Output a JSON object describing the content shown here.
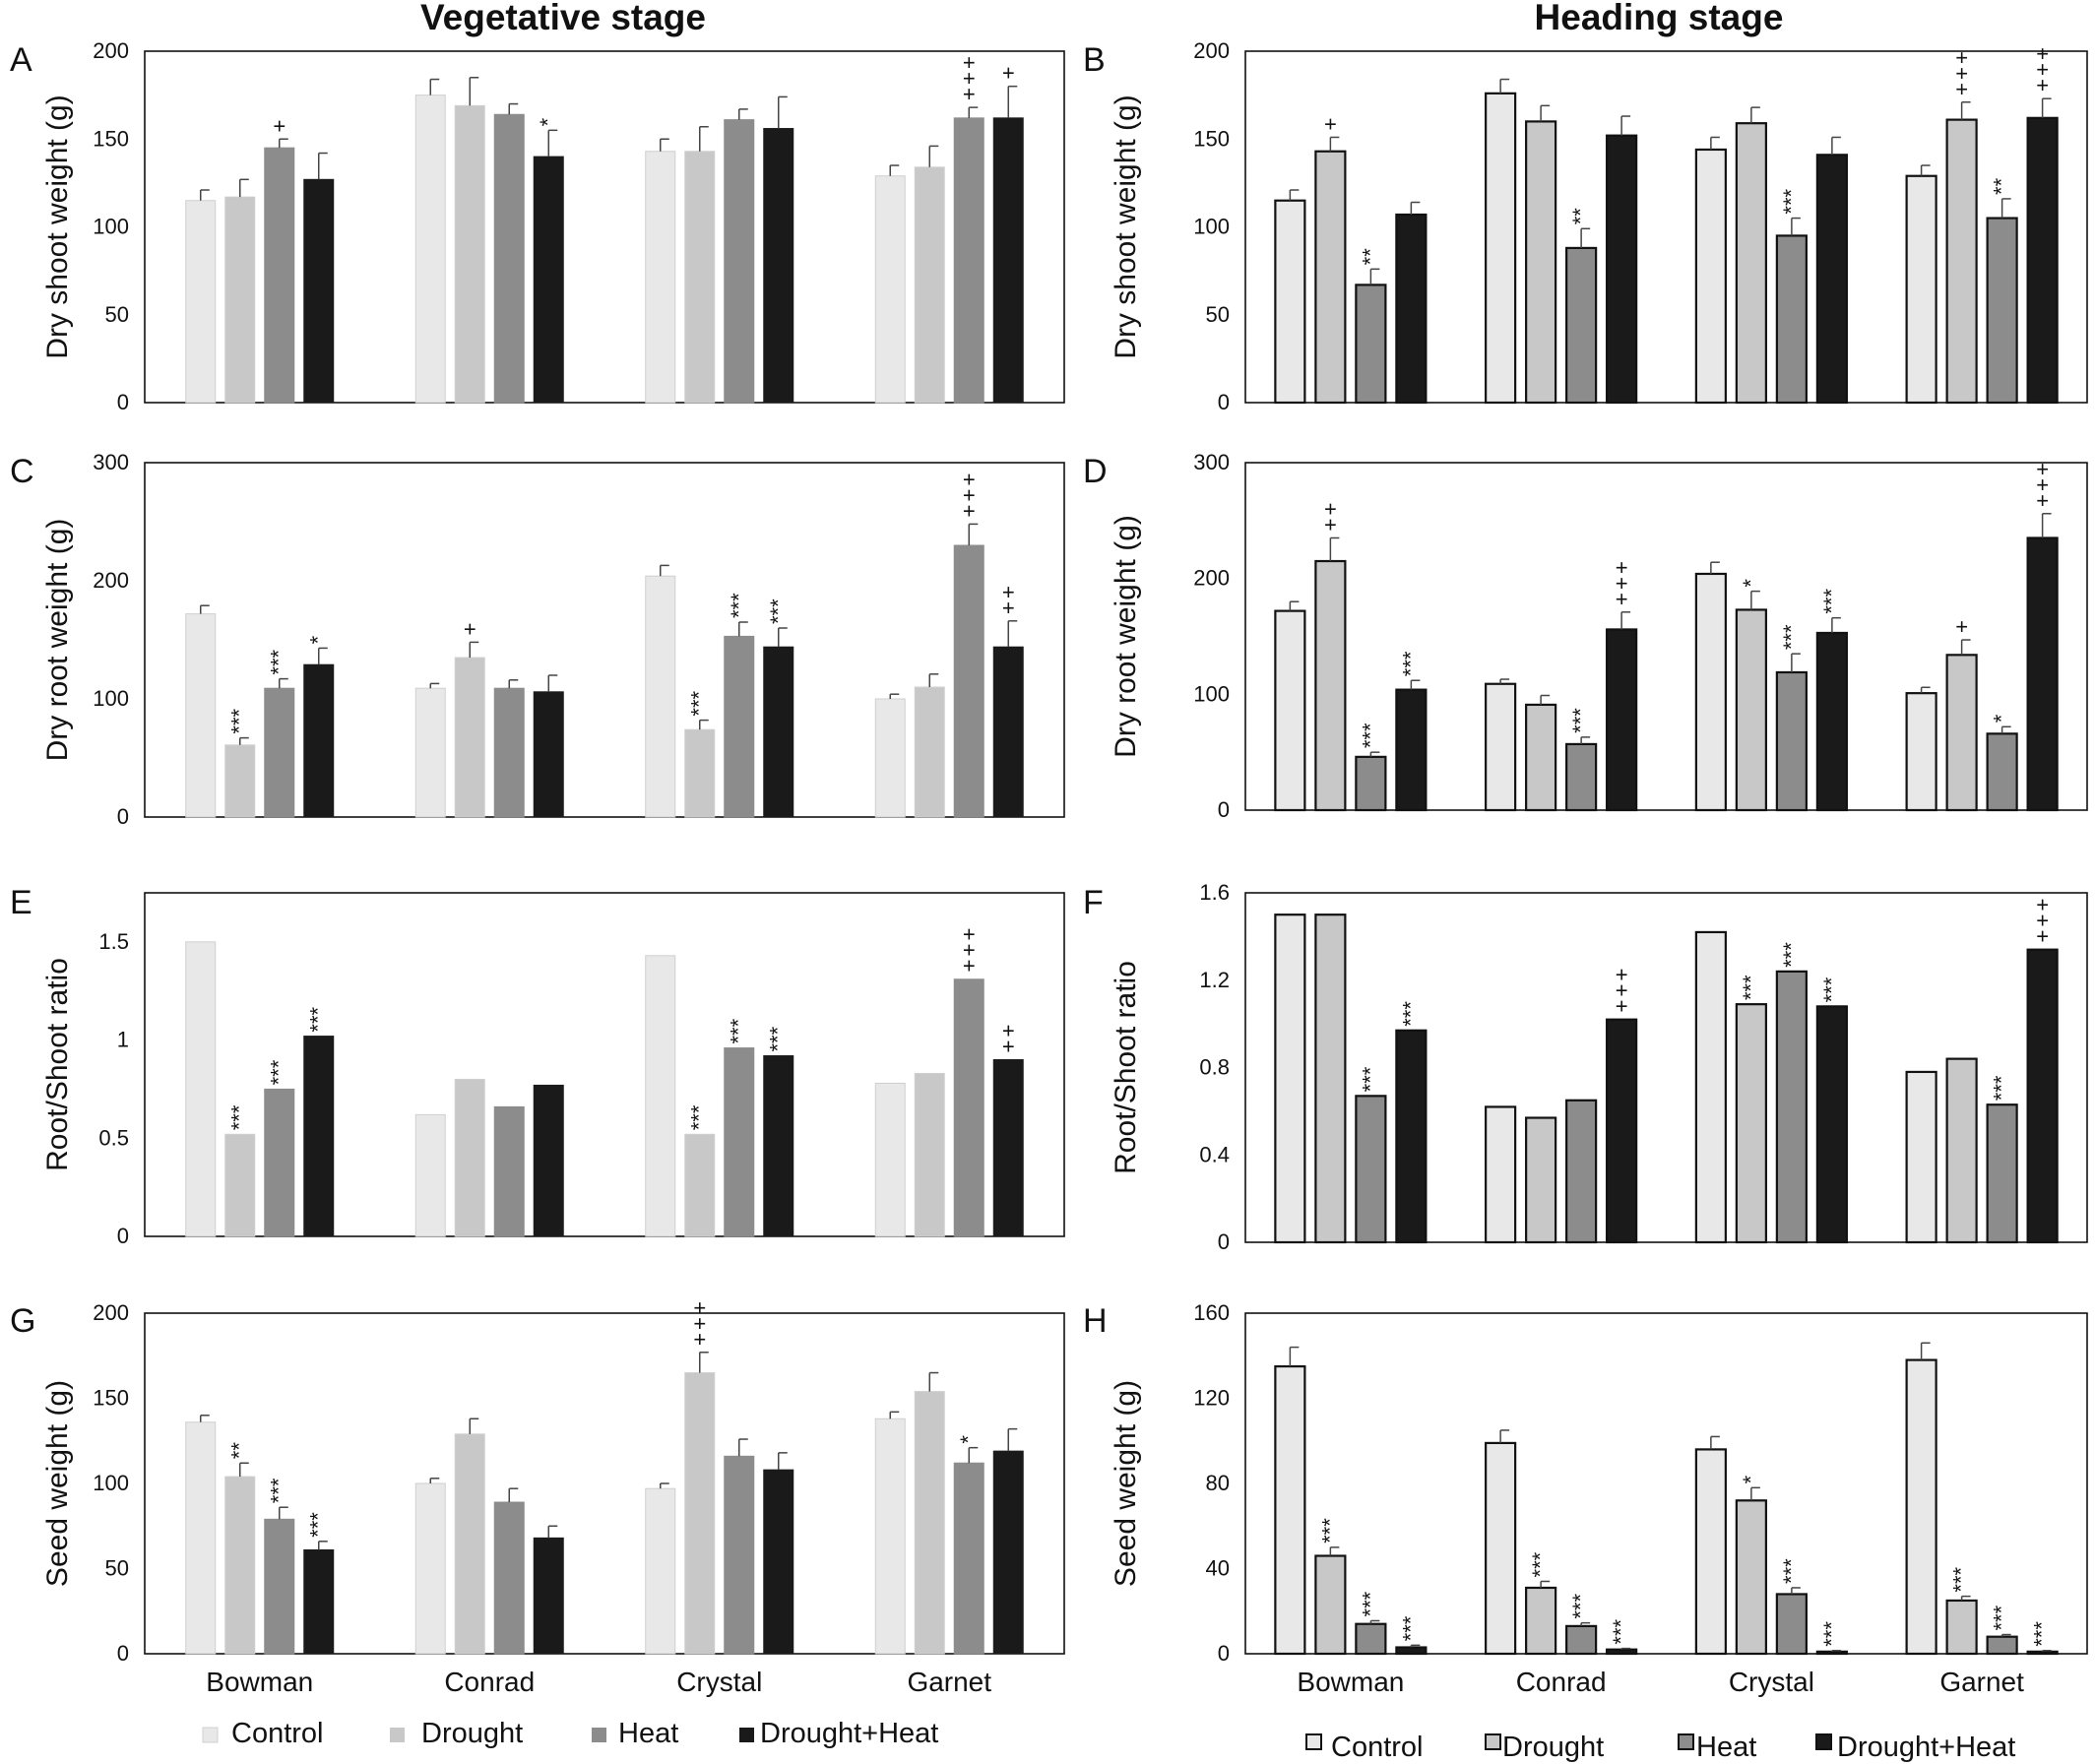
{
  "titles": {
    "left": "Vegetative stage",
    "right": "Heading stage"
  },
  "colors": {
    "Control": "#e8e8e8",
    "Drought": "#c8c8c8",
    "Heat": "#8c8c8c",
    "Drought+Heat": "#1a1a1a"
  },
  "legend": [
    "Control",
    "Drought",
    "Heat",
    "Drought+Heat"
  ],
  "chart_data": [
    {
      "id": "A",
      "type": "bar",
      "title": "",
      "ylabel": "Dry shoot weight (g)",
      "ylim": [
        0,
        200
      ],
      "yticks": [
        0,
        50,
        100,
        150,
        200
      ],
      "categories": [
        "Bowman",
        "Conrad",
        "Crystal",
        "Garnet"
      ],
      "series": [
        {
          "name": "Control",
          "values": [
            115,
            175,
            143,
            129
          ],
          "errors": [
            6,
            9,
            7,
            6
          ],
          "annotations": [
            "",
            "",
            "",
            ""
          ]
        },
        {
          "name": "Drought",
          "values": [
            117,
            169,
            143,
            134
          ],
          "errors": [
            10,
            16,
            14,
            12
          ],
          "annotations": [
            "",
            "",
            "",
            ""
          ]
        },
        {
          "name": "Heat",
          "values": [
            145,
            164,
            161,
            162
          ],
          "errors": [
            5,
            6,
            6,
            6
          ],
          "annotations": [
            "+",
            "",
            "",
            "+++"
          ]
        },
        {
          "name": "Drought+Heat",
          "values": [
            127,
            140,
            156,
            162
          ],
          "errors": [
            15,
            15,
            18,
            18
          ],
          "annotations": [
            "",
            "*",
            "",
            "+"
          ]
        }
      ]
    },
    {
      "id": "B",
      "type": "bar",
      "title": "",
      "ylabel": "Dry shoot weight (g)",
      "ylim": [
        0,
        200
      ],
      "yticks": [
        0,
        50,
        100,
        150,
        200
      ],
      "categories": [
        "Bowman",
        "Conrad",
        "Crystal",
        "Garnet"
      ],
      "series": [
        {
          "name": "Control",
          "values": [
            115,
            176,
            144,
            129
          ],
          "errors": [
            6,
            8,
            7,
            6
          ],
          "annotations": [
            "",
            "",
            "",
            ""
          ]
        },
        {
          "name": "Drought",
          "values": [
            143,
            160,
            159,
            161
          ],
          "errors": [
            8,
            9,
            9,
            10
          ],
          "annotations": [
            "+",
            "",
            "",
            "+++"
          ]
        },
        {
          "name": "Heat",
          "values": [
            67,
            88,
            95,
            105
          ],
          "errors": [
            9,
            11,
            10,
            11
          ],
          "annotations": [
            "**",
            "**",
            "***",
            "**"
          ]
        },
        {
          "name": "Drought+Heat",
          "values": [
            107,
            152,
            141,
            162
          ],
          "errors": [
            7,
            11,
            10,
            11
          ],
          "annotations": [
            "",
            "",
            "",
            "+++"
          ]
        }
      ]
    },
    {
      "id": "C",
      "type": "bar",
      "title": "",
      "ylabel": "Dry root weight (g)",
      "ylim": [
        0,
        300
      ],
      "yticks": [
        0,
        100,
        200,
        300
      ],
      "categories": [
        "Bowman",
        "Conrad",
        "Crystal",
        "Garnet"
      ],
      "series": [
        {
          "name": "Control",
          "values": [
            172,
            109,
            204,
            100
          ],
          "errors": [
            7,
            4,
            9,
            4
          ],
          "annotations": [
            "",
            "",
            "",
            ""
          ]
        },
        {
          "name": "Drought",
          "values": [
            61,
            135,
            74,
            110
          ],
          "errors": [
            6,
            13,
            8,
            11
          ],
          "annotations": [
            "***",
            "+",
            "***",
            ""
          ]
        },
        {
          "name": "Heat",
          "values": [
            109,
            109,
            153,
            230
          ],
          "errors": [
            8,
            7,
            12,
            18
          ],
          "annotations": [
            "***",
            "",
            "***",
            "+++"
          ]
        },
        {
          "name": "Drought+Heat",
          "values": [
            129,
            106,
            144,
            144
          ],
          "errors": [
            14,
            14,
            16,
            22
          ],
          "annotations": [
            "*",
            "",
            "***",
            "++"
          ]
        }
      ]
    },
    {
      "id": "D",
      "type": "bar",
      "title": "",
      "ylabel": "Dry root weight (g)",
      "ylim": [
        0,
        300
      ],
      "yticks": [
        0,
        100,
        200,
        300
      ],
      "categories": [
        "Bowman",
        "Conrad",
        "Crystal",
        "Garnet"
      ],
      "series": [
        {
          "name": "Control",
          "values": [
            172,
            109,
            204,
            101
          ],
          "errors": [
            8,
            4,
            10,
            5
          ],
          "annotations": [
            "",
            "",
            "",
            ""
          ]
        },
        {
          "name": "Drought",
          "values": [
            215,
            91,
            173,
            134
          ],
          "errors": [
            20,
            8,
            16,
            13
          ],
          "annotations": [
            "++",
            "",
            "*",
            "+"
          ]
        },
        {
          "name": "Heat",
          "values": [
            46,
            57,
            119,
            66
          ],
          "errors": [
            4,
            6,
            16,
            6
          ],
          "annotations": [
            "***",
            "***",
            "***",
            "*"
          ]
        },
        {
          "name": "Drought+Heat",
          "values": [
            104,
            156,
            153,
            235
          ],
          "errors": [
            8,
            15,
            13,
            21
          ],
          "annotations": [
            "***",
            "+++",
            "***",
            "+++"
          ]
        }
      ]
    },
    {
      "id": "E",
      "type": "bar",
      "title": "",
      "ylabel": "Root/Shoot ratio",
      "ylim": [
        0,
        1.75
      ],
      "yticks": [
        0,
        0.5,
        1,
        1.5
      ],
      "categories": [
        "Bowman",
        "Conrad",
        "Crystal",
        "Garnet"
      ],
      "series": [
        {
          "name": "Control",
          "values": [
            1.5,
            0.62,
            1.43,
            0.78
          ],
          "errors": [
            0,
            0,
            0,
            0
          ],
          "annotations": [
            "",
            "",
            "",
            ""
          ]
        },
        {
          "name": "Drought",
          "values": [
            0.52,
            0.8,
            0.52,
            0.83
          ],
          "errors": [
            0,
            0,
            0,
            0
          ],
          "annotations": [
            "***",
            "",
            "***",
            ""
          ]
        },
        {
          "name": "Heat",
          "values": [
            0.75,
            0.66,
            0.96,
            1.31
          ],
          "errors": [
            0,
            0,
            0,
            0
          ],
          "annotations": [
            "***",
            "",
            "***",
            "+++"
          ]
        },
        {
          "name": "Drought+Heat",
          "values": [
            1.02,
            0.77,
            0.92,
            0.9
          ],
          "errors": [
            0,
            0,
            0,
            0
          ],
          "annotations": [
            "***",
            "",
            "***",
            "++"
          ]
        }
      ]
    },
    {
      "id": "F",
      "type": "bar",
      "title": "",
      "ylabel": "Root/Shoot ratio",
      "ylim": [
        0,
        1.6
      ],
      "yticks": [
        "0",
        "0.4",
        "0.8",
        "1.2",
        "1.6"
      ],
      "categories": [
        "Bowman",
        "Conrad",
        "Crystal",
        "Garnet"
      ],
      "series": [
        {
          "name": "Control",
          "values": [
            1.5,
            0.62,
            1.42,
            0.78
          ],
          "errors": [
            0,
            0,
            0,
            0
          ],
          "annotations": [
            "",
            "",
            "",
            ""
          ]
        },
        {
          "name": "Drought",
          "values": [
            1.5,
            0.57,
            1.09,
            0.84
          ],
          "errors": [
            0,
            0,
            0,
            0
          ],
          "annotations": [
            "",
            "",
            "***",
            ""
          ]
        },
        {
          "name": "Heat",
          "values": [
            0.67,
            0.65,
            1.24,
            0.63
          ],
          "errors": [
            0,
            0,
            0,
            0
          ],
          "annotations": [
            "***",
            "",
            "***",
            "***"
          ]
        },
        {
          "name": "Drought+Heat",
          "values": [
            0.97,
            1.02,
            1.08,
            1.34
          ],
          "errors": [
            0,
            0,
            0,
            0
          ],
          "annotations": [
            "***",
            "+++",
            "***",
            "+++"
          ]
        }
      ]
    },
    {
      "id": "G",
      "type": "bar",
      "title": "",
      "ylabel": "Seed weight (g)",
      "ylim": [
        0,
        200
      ],
      "yticks": [
        0,
        50,
        100,
        150,
        200
      ],
      "categories": [
        "Bowman",
        "Conrad",
        "Crystal",
        "Garnet"
      ],
      "series": [
        {
          "name": "Control",
          "values": [
            136,
            100,
            97,
            138
          ],
          "errors": [
            4,
            3,
            3,
            4
          ],
          "annotations": [
            "",
            "",
            "",
            ""
          ]
        },
        {
          "name": "Drought",
          "values": [
            104,
            129,
            165,
            154
          ],
          "errors": [
            8,
            9,
            12,
            11
          ],
          "annotations": [
            "**",
            "",
            "+++",
            ""
          ]
        },
        {
          "name": "Heat",
          "values": [
            79,
            89,
            116,
            112
          ],
          "errors": [
            7,
            8,
            10,
            9
          ],
          "annotations": [
            "***",
            "",
            "",
            "*"
          ]
        },
        {
          "name": "Drought+Heat",
          "values": [
            61,
            68,
            108,
            119
          ],
          "errors": [
            5,
            7,
            10,
            13
          ],
          "annotations": [
            "***",
            "",
            "",
            ""
          ]
        }
      ]
    },
    {
      "id": "H",
      "type": "bar",
      "title": "",
      "ylabel": "Seed weight (g)",
      "ylim": [
        0,
        160
      ],
      "yticks": [
        0,
        40,
        80,
        120,
        160
      ],
      "categories": [
        "Bowman",
        "Conrad",
        "Crystal",
        "Garnet"
      ],
      "series": [
        {
          "name": "Control",
          "values": [
            135,
            99,
            96,
            138
          ],
          "errors": [
            9,
            6,
            6,
            8
          ],
          "annotations": [
            "",
            "",
            "",
            ""
          ]
        },
        {
          "name": "Drought",
          "values": [
            46,
            31,
            72,
            25
          ],
          "errors": [
            4,
            3,
            6,
            2
          ],
          "annotations": [
            "***",
            "***",
            "*",
            "***"
          ]
        },
        {
          "name": "Heat",
          "values": [
            14,
            13,
            28,
            8
          ],
          "errors": [
            1.5,
            1.5,
            3,
            1
          ],
          "annotations": [
            "***",
            "***",
            "***",
            "***"
          ]
        },
        {
          "name": "Drought+Heat",
          "values": [
            3,
            2,
            1,
            1
          ],
          "errors": [
            1,
            0.5,
            0.5,
            0.5
          ],
          "annotations": [
            "***",
            "***",
            "***",
            "***"
          ]
        }
      ]
    }
  ]
}
